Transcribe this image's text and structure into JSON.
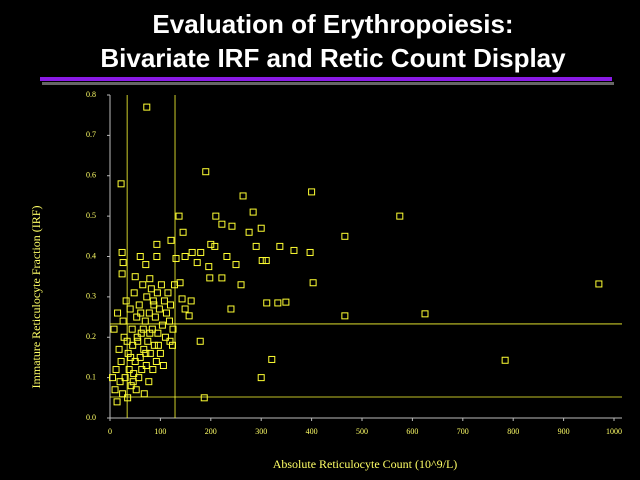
{
  "chart_data": {
    "type": "scatter",
    "title": [
      "Evaluation of Erythropoiesis:",
      "Bivariate IRF and Retic Count Display"
    ],
    "x_label": "Absolute Reticulocyte Count (10^9/L)",
    "y_label": "Immature Reticulocyte Fraction (IRF)",
    "color": "#ffff33",
    "xlim": [
      0,
      1000
    ],
    "ylim": [
      0,
      0.8
    ],
    "xticks": [
      0,
      100,
      200,
      300,
      400,
      500,
      600,
      700,
      800,
      900,
      1000
    ],
    "yticks": [
      {
        "value": 0,
        "label": "0.0"
      },
      0.1,
      0.2,
      0.3,
      0.4,
      0.5,
      0.6,
      0.7,
      0.8
    ],
    "vlines": [
      34,
      129
    ],
    "hlines": [
      0.233,
      0.052
    ],
    "x": [
      73,
      190,
      22,
      264,
      400,
      575,
      284,
      210,
      137,
      466,
      242,
      222,
      145,
      276,
      300,
      200,
      208,
      290,
      337,
      93,
      121,
      365,
      397,
      24,
      163,
      180,
      149,
      232,
      60,
      93,
      131,
      26,
      302,
      310,
      173,
      196,
      250,
      71,
      24,
      50,
      198,
      222,
      79,
      139,
      260,
      403,
      970,
      143,
      311,
      333,
      349,
      161,
      149,
      240,
      157,
      466,
      625,
      179,
      321,
      784,
      300,
      187,
      119,
      10,
      12,
      8,
      15,
      18,
      20,
      22,
      25,
      28,
      30,
      32,
      35,
      36,
      38,
      40,
      42,
      44,
      45,
      47,
      48,
      50,
      52,
      53,
      55,
      57,
      58,
      60,
      62,
      63,
      65,
      67,
      68,
      70,
      72,
      73,
      75,
      77,
      78,
      80,
      82,
      84,
      85,
      87,
      88,
      90,
      92,
      94,
      95,
      98,
      100,
      102,
      104,
      106,
      108,
      110,
      112,
      115,
      118,
      120,
      125,
      5,
      14,
      26,
      34,
      41,
      46,
      54,
      61,
      66,
      71,
      79,
      86,
      96,
      124,
      128
    ],
    "values": [
      0.77,
      0.61,
      0.58,
      0.55,
      0.56,
      0.5,
      0.51,
      0.5,
      0.5,
      0.45,
      0.475,
      0.48,
      0.46,
      0.46,
      0.47,
      0.43,
      0.425,
      0.425,
      0.425,
      0.43,
      0.44,
      0.415,
      0.41,
      0.41,
      0.41,
      0.41,
      0.4,
      0.4,
      0.4,
      0.4,
      0.395,
      0.385,
      0.39,
      0.39,
      0.385,
      0.375,
      0.38,
      0.38,
      0.357,
      0.35,
      0.347,
      0.347,
      0.345,
      0.335,
      0.33,
      0.335,
      0.332,
      0.295,
      0.285,
      0.285,
      0.287,
      0.29,
      0.27,
      0.27,
      0.253,
      0.253,
      0.258,
      0.19,
      0.145,
      0.143,
      0.1,
      0.05,
      0.19,
      0.07,
      0.12,
      0.22,
      0.26,
      0.17,
      0.09,
      0.14,
      0.06,
      0.2,
      0.1,
      0.29,
      0.05,
      0.16,
      0.12,
      0.27,
      0.08,
      0.22,
      0.18,
      0.11,
      0.31,
      0.14,
      0.07,
      0.25,
      0.19,
      0.1,
      0.28,
      0.15,
      0.21,
      0.12,
      0.33,
      0.17,
      0.06,
      0.24,
      0.13,
      0.3,
      0.19,
      0.09,
      0.26,
      0.16,
      0.32,
      0.22,
      0.12,
      0.28,
      0.18,
      0.25,
      0.14,
      0.31,
      0.21,
      0.27,
      0.16,
      0.33,
      0.23,
      0.13,
      0.29,
      0.2,
      0.26,
      0.31,
      0.24,
      0.28,
      0.22,
      0.1,
      0.04,
      0.24,
      0.19,
      0.15,
      0.09,
      0.2,
      0.26,
      0.22,
      0.16,
      0.21,
      0.29,
      0.18,
      0.18,
      0.33
    ]
  }
}
